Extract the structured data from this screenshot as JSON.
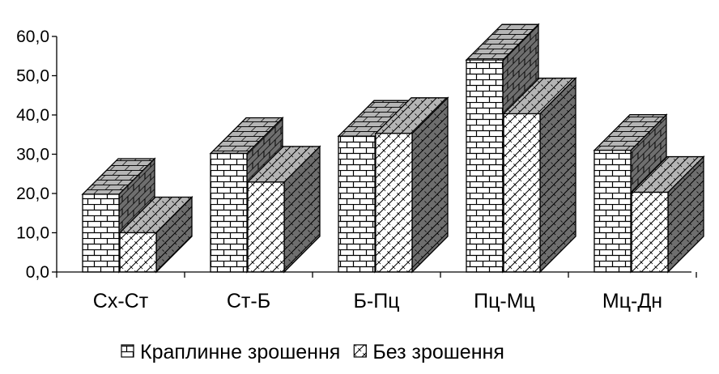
{
  "chart_data": {
    "type": "bar",
    "style": "3d-clustered-column",
    "categories": [
      "Сх-Ст",
      "Ст-Б",
      "Б-Пц",
      "Пц-Мц",
      "Мц-Дн"
    ],
    "series": [
      {
        "name": "Краплинне зрошення",
        "pattern": "brick",
        "values": [
          19.8,
          30.2,
          34.6,
          54.0,
          31.0
        ]
      },
      {
        "name": "Без зрошення",
        "pattern": "diagonal-crosshatch",
        "values": [
          10.0,
          22.9,
          35.3,
          40.3,
          20.3
        ]
      }
    ],
    "yticks": [
      "0,0",
      "10,0",
      "20,0",
      "30,0",
      "40,0",
      "50,0",
      "60,0"
    ],
    "ylim": [
      0,
      60
    ],
    "grid": false,
    "legend_position": "bottom",
    "colors": {
      "front": "#ffffff",
      "top": "#b5b5b5",
      "side": "#6e6e6e",
      "line": "#000000"
    }
  }
}
